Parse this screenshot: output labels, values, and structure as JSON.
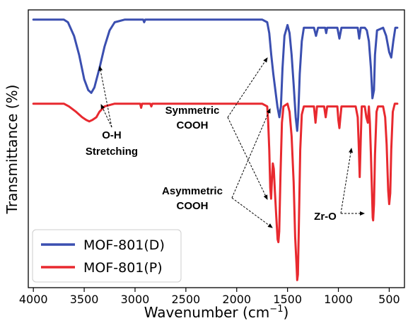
{
  "chart_data": {
    "type": "line",
    "title": "",
    "xlabel": "Wavenumber (cm",
    "xlabel_sup": "−1",
    "xlabel_close": ")",
    "ylabel": "Transmittance (%)",
    "xlim": [
      4050,
      350
    ],
    "x_reversed": true,
    "x_ticks": [
      4000,
      3500,
      3000,
      2500,
      2000,
      1500,
      1000,
      500
    ],
    "y_ticks_shown": false,
    "grid": false,
    "legend_position": "bottom-left",
    "series": [
      {
        "name": "MOF-801(D)",
        "color": "#3b4fb0",
        "points": [
          [
            4000,
            98
          ],
          [
            3700,
            98
          ],
          [
            3660,
            97
          ],
          [
            3600,
            92
          ],
          [
            3550,
            85
          ],
          [
            3500,
            76
          ],
          [
            3460,
            72
          ],
          [
            3430,
            71
          ],
          [
            3400,
            73
          ],
          [
            3350,
            80
          ],
          [
            3300,
            88
          ],
          [
            3250,
            94
          ],
          [
            3200,
            97
          ],
          [
            3100,
            98
          ],
          [
            2920,
            98
          ],
          [
            2910,
            97
          ],
          [
            2900,
            98
          ],
          [
            1750,
            98
          ],
          [
            1700,
            97
          ],
          [
            1680,
            93
          ],
          [
            1660,
            85
          ],
          [
            1640,
            78
          ],
          [
            1620,
            72
          ],
          [
            1600,
            66
          ],
          [
            1580,
            62
          ],
          [
            1565,
            66
          ],
          [
            1550,
            80
          ],
          [
            1530,
            92
          ],
          [
            1500,
            96
          ],
          [
            1480,
            93
          ],
          [
            1460,
            85
          ],
          [
            1440,
            74
          ],
          [
            1420,
            62
          ],
          [
            1405,
            57
          ],
          [
            1395,
            62
          ],
          [
            1380,
            78
          ],
          [
            1360,
            90
          ],
          [
            1340,
            95
          ],
          [
            1240,
            95
          ],
          [
            1220,
            92
          ],
          [
            1200,
            95
          ],
          [
            1130,
            95
          ],
          [
            1120,
            93
          ],
          [
            1110,
            95
          ],
          [
            1010,
            95
          ],
          [
            990,
            91
          ],
          [
            970,
            95
          ],
          [
            810,
            95
          ],
          [
            795,
            91
          ],
          [
            780,
            95
          ],
          [
            740,
            95
          ],
          [
            720,
            94
          ],
          [
            700,
            90
          ],
          [
            680,
            80
          ],
          [
            665,
            69
          ],
          [
            650,
            72
          ],
          [
            640,
            85
          ],
          [
            620,
            94
          ],
          [
            560,
            95
          ],
          [
            530,
            92
          ],
          [
            500,
            86
          ],
          [
            480,
            84
          ],
          [
            460,
            90
          ],
          [
            440,
            95
          ],
          [
            420,
            95
          ]
        ]
      },
      {
        "name": "MOF-801(P)",
        "color": "#e8292f",
        "points": [
          [
            4000,
            67
          ],
          [
            3700,
            67
          ],
          [
            3650,
            66
          ],
          [
            3580,
            64
          ],
          [
            3520,
            62
          ],
          [
            3480,
            61
          ],
          [
            3450,
            60.5
          ],
          [
            3420,
            61
          ],
          [
            3380,
            62
          ],
          [
            3350,
            64
          ],
          [
            3300,
            66
          ],
          [
            3200,
            67
          ],
          [
            2950,
            67
          ],
          [
            2940,
            65.5
          ],
          [
            2930,
            67
          ],
          [
            2850,
            67
          ],
          [
            2840,
            66
          ],
          [
            2830,
            67
          ],
          [
            1750,
            67
          ],
          [
            1700,
            66
          ],
          [
            1690,
            60
          ],
          [
            1680,
            50
          ],
          [
            1670,
            36
          ],
          [
            1662,
            32
          ],
          [
            1655,
            38
          ],
          [
            1645,
            45
          ],
          [
            1635,
            43
          ],
          [
            1625,
            35
          ],
          [
            1610,
            25
          ],
          [
            1598,
            17
          ],
          [
            1590,
            16
          ],
          [
            1582,
            20
          ],
          [
            1570,
            40
          ],
          [
            1555,
            60
          ],
          [
            1540,
            66
          ],
          [
            1500,
            67
          ],
          [
            1480,
            64
          ],
          [
            1460,
            55
          ],
          [
            1440,
            38
          ],
          [
            1425,
            18
          ],
          [
            1412,
            8
          ],
          [
            1405,
            2
          ],
          [
            1398,
            4
          ],
          [
            1390,
            20
          ],
          [
            1375,
            50
          ],
          [
            1360,
            63
          ],
          [
            1340,
            66
          ],
          [
            1240,
            66
          ],
          [
            1225,
            60
          ],
          [
            1210,
            66
          ],
          [
            1140,
            66
          ],
          [
            1125,
            62
          ],
          [
            1110,
            66
          ],
          [
            1010,
            66
          ],
          [
            1000,
            61
          ],
          [
            990,
            58
          ],
          [
            980,
            62
          ],
          [
            970,
            66
          ],
          [
            830,
            66
          ],
          [
            810,
            62
          ],
          [
            800,
            52
          ],
          [
            790,
            40
          ],
          [
            780,
            54
          ],
          [
            770,
            66
          ],
          [
            740,
            66
          ],
          [
            725,
            62
          ],
          [
            710,
            60
          ],
          [
            700,
            66
          ],
          [
            690,
            60
          ],
          [
            680,
            48
          ],
          [
            670,
            35
          ],
          [
            662,
            25
          ],
          [
            658,
            24
          ],
          [
            650,
            30
          ],
          [
            640,
            48
          ],
          [
            625,
            64
          ],
          [
            610,
            66
          ],
          [
            560,
            66
          ],
          [
            540,
            62
          ],
          [
            525,
            52
          ],
          [
            510,
            35
          ],
          [
            500,
            30
          ],
          [
            490,
            34
          ],
          [
            480,
            50
          ],
          [
            465,
            64
          ],
          [
            445,
            67
          ],
          [
            420,
            67
          ]
        ]
      }
    ],
    "annotations": [
      {
        "label_lines": [
          "O-H",
          "Stretching"
        ]
      },
      {
        "label_lines": [
          "Symmetric",
          "COOH"
        ]
      },
      {
        "label_lines": [
          "Asymmetric",
          "COOH"
        ]
      },
      {
        "label_lines": [
          "Zr-O"
        ]
      }
    ]
  }
}
